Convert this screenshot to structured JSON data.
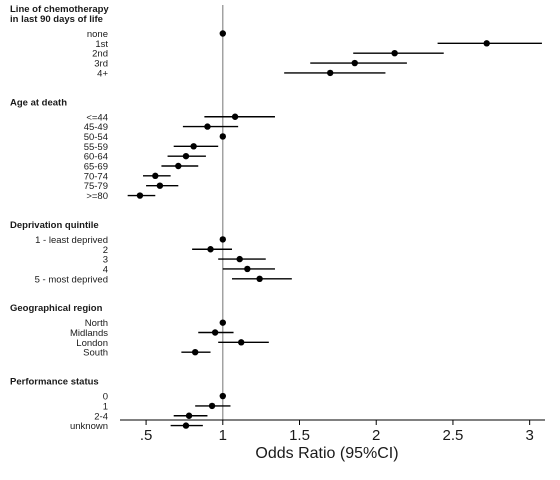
{
  "chart_data": {
    "type": "forest",
    "xlabel": "Odds Ratio (95%CI)",
    "xlim": [
      0.33,
      3.1
    ],
    "xticks": [
      {
        "value": 0.5,
        "label": ".5"
      },
      {
        "value": 1,
        "label": "1"
      },
      {
        "value": 1.5,
        "label": "1.5"
      },
      {
        "value": 2,
        "label": "2"
      },
      {
        "value": 2.5,
        "label": "2.5"
      },
      {
        "value": 3,
        "label": "3"
      }
    ],
    "reference_line": 1,
    "groups": [
      {
        "title_lines": [
          "Line of chemotherapy",
          "in last 90 days of life"
        ],
        "rows": [
          {
            "label": "none",
            "or": 1.0,
            "lo": 1.0,
            "hi": 1.0
          },
          {
            "label": "1st",
            "or": 2.72,
            "lo": 2.4,
            "hi": 3.08
          },
          {
            "label": "2nd",
            "or": 2.12,
            "lo": 1.85,
            "hi": 2.44
          },
          {
            "label": "3rd",
            "or": 1.86,
            "lo": 1.57,
            "hi": 2.2
          },
          {
            "label": "4+",
            "or": 1.7,
            "lo": 1.4,
            "hi": 2.06
          }
        ]
      },
      {
        "title_lines": [
          "Age at death"
        ],
        "rows": [
          {
            "label": "<=44",
            "or": 1.08,
            "lo": 0.88,
            "hi": 1.34
          },
          {
            "label": "45-49",
            "or": 0.9,
            "lo": 0.74,
            "hi": 1.1
          },
          {
            "label": "50-54",
            "or": 1.0,
            "lo": 1.0,
            "hi": 1.0
          },
          {
            "label": "55-59",
            "or": 0.81,
            "lo": 0.68,
            "hi": 0.97
          },
          {
            "label": "60-64",
            "or": 0.76,
            "lo": 0.64,
            "hi": 0.89
          },
          {
            "label": "65-69",
            "or": 0.71,
            "lo": 0.6,
            "hi": 0.84
          },
          {
            "label": "70-74",
            "or": 0.56,
            "lo": 0.48,
            "hi": 0.66
          },
          {
            "label": "75-79",
            "or": 0.59,
            "lo": 0.5,
            "hi": 0.71
          },
          {
            "label": ">=80",
            "or": 0.46,
            "lo": 0.38,
            "hi": 0.56
          }
        ]
      },
      {
        "title_lines": [
          "Deprivation quintile"
        ],
        "rows": [
          {
            "label": "1 - least deprived",
            "or": 1.0,
            "lo": 1.0,
            "hi": 1.0
          },
          {
            "label": "2",
            "or": 0.92,
            "lo": 0.8,
            "hi": 1.06
          },
          {
            "label": "3",
            "or": 1.11,
            "lo": 0.97,
            "hi": 1.28
          },
          {
            "label": "4",
            "or": 1.16,
            "lo": 1.0,
            "hi": 1.34
          },
          {
            "label": "5 - most deprived",
            "or": 1.24,
            "lo": 1.06,
            "hi": 1.45
          }
        ]
      },
      {
        "title_lines": [
          "Geographical region"
        ],
        "rows": [
          {
            "label": "North",
            "or": 1.0,
            "lo": 1.0,
            "hi": 1.0
          },
          {
            "label": "Midlands",
            "or": 0.95,
            "lo": 0.84,
            "hi": 1.07
          },
          {
            "label": "London",
            "or": 1.12,
            "lo": 0.97,
            "hi": 1.3
          },
          {
            "label": "South",
            "or": 0.82,
            "lo": 0.73,
            "hi": 0.92
          }
        ]
      },
      {
        "title_lines": [
          "Performance status"
        ],
        "rows": [
          {
            "label": "0",
            "or": 1.0,
            "lo": 1.0,
            "hi": 1.0
          },
          {
            "label": "1",
            "or": 0.93,
            "lo": 0.82,
            "hi": 1.05
          },
          {
            "label": "2-4",
            "or": 0.78,
            "lo": 0.68,
            "hi": 0.9
          },
          {
            "label": "unknown",
            "or": 0.76,
            "lo": 0.66,
            "hi": 0.87
          }
        ]
      }
    ],
    "colors": {
      "marker": "#000000",
      "ci_line": "#000000",
      "reference_line": "#8c8c8c",
      "axis": "#000000",
      "text": "#1a1a1a"
    }
  }
}
